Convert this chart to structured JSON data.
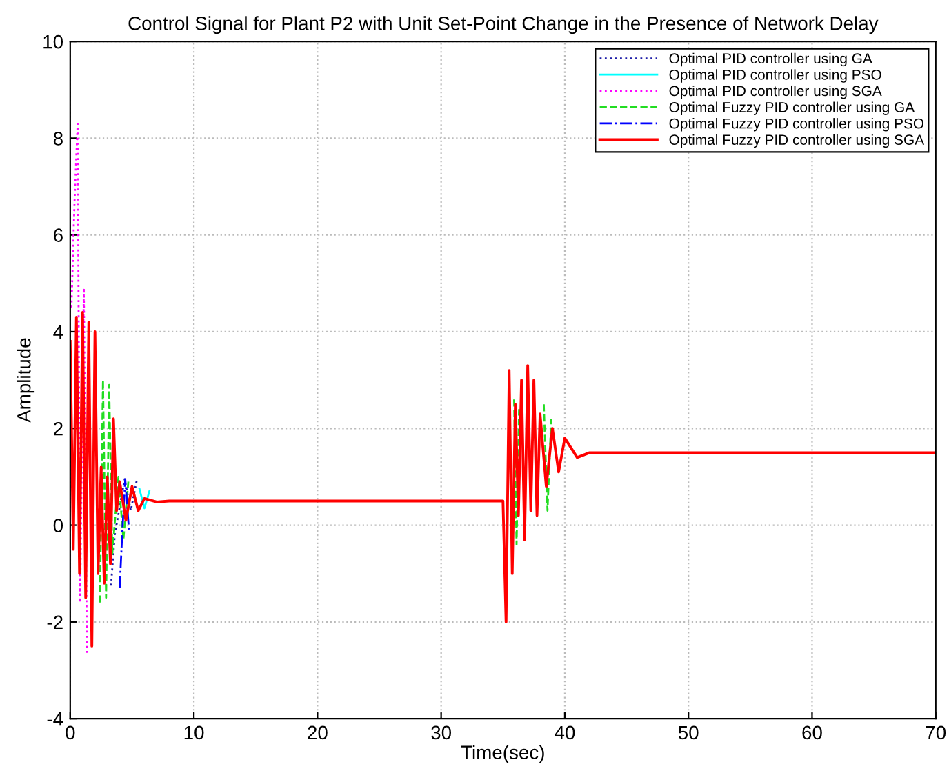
{
  "chart_data": {
    "type": "line",
    "title": "Control Signal for Plant P2 with Unit Set-Point Change in the Presence of Network Delay",
    "xlabel": "Time(sec)",
    "ylabel": "Amplitude",
    "x": [
      0,
      0.25,
      0.5,
      0.75,
      1,
      1.25,
      1.5,
      1.75,
      2,
      2.25,
      2.5,
      2.75,
      3,
      3.25,
      3.5,
      3.75,
      4,
      4.5,
      5,
      5.5,
      6,
      7,
      8,
      10,
      35,
      35.25,
      35.5,
      35.75,
      36,
      36.25,
      36.5,
      36.75,
      37,
      37.25,
      37.5,
      37.75,
      38,
      38.5,
      39,
      39.5,
      40,
      41,
      42,
      45,
      70
    ],
    "series": [
      {
        "name": "Optimal PID controller using GA",
        "color": "#1a1aa6",
        "line_style": "dotted",
        "x": [
          3.3,
          3.6,
          4.4,
          4.9,
          5.4
        ],
        "values": [
          -1.25,
          -0.2,
          0.95,
          0.3,
          0.95
        ]
      },
      {
        "name": "Optimal PID controller using PSO",
        "color": "#00ffff",
        "line_style": "solid",
        "x": [
          5.6,
          6.0,
          6.4
        ],
        "values": [
          0.75,
          0.35,
          0.7
        ]
      },
      {
        "name": "Optimal PID controller using SGA",
        "color": "#ff00ff",
        "line_style": "dotted",
        "x": [
          0.1,
          0.35,
          0.6,
          0.8,
          1.1,
          1.35
        ],
        "values": [
          4.5,
          6.7,
          8.3,
          -1.6,
          4.9,
          -2.7
        ]
      },
      {
        "name": "Optimal Fuzzy PID controller using GA",
        "color": "#22dd22",
        "line_style": "dashed",
        "x": [
          2.4,
          2.65,
          2.9,
          3.15,
          3.4,
          3.9,
          4.3,
          4.7,
          20,
          35.9,
          36.1,
          36.3,
          37,
          38.3,
          38.6,
          38.9
        ],
        "values": [
          -1.6,
          3.0,
          -1.5,
          2.9,
          -0.6,
          1.0,
          -0.3,
          0.9,
          null,
          2.6,
          -0.4,
          2.4,
          null,
          2.5,
          0.3,
          2.2
        ]
      },
      {
        "name": "Optimal Fuzzy PID controller using PSO",
        "color": "#0000ff",
        "line_style": "dashdot",
        "x": [
          4.0,
          4.2,
          4.45,
          4.75
        ],
        "values": [
          -1.3,
          -0.2,
          0.95,
          -0.1
        ]
      },
      {
        "name": "Optimal Fuzzy PID controller using SGA",
        "color": "#ff0000",
        "line_style": "solid",
        "values": [
          3.8,
          -0.5,
          4.3,
          -1.0,
          4.4,
          -1.5,
          4.2,
          -2.5,
          4.0,
          -1.0,
          1.2,
          -1.2,
          1.0,
          -0.8,
          2.2,
          0.3,
          0.9,
          0.1,
          0.8,
          0.3,
          0.55,
          0.48,
          0.5,
          0.5,
          0.5,
          -2.0,
          3.2,
          -1.0,
          2.5,
          0.2,
          3.0,
          -0.3,
          3.3,
          0.3,
          3.0,
          0.2,
          2.3,
          0.8,
          2.0,
          1.1,
          1.8,
          1.4,
          1.5,
          1.5,
          1.5
        ]
      }
    ],
    "xlim": [
      0,
      70
    ],
    "ylim": [
      -4,
      10
    ],
    "xticks": [
      0,
      10,
      20,
      30,
      40,
      50,
      60,
      70
    ],
    "yticks": [
      -4,
      -2,
      0,
      2,
      4,
      6,
      8,
      10
    ],
    "grid": true,
    "legend": "top right",
    "marker": "none"
  }
}
